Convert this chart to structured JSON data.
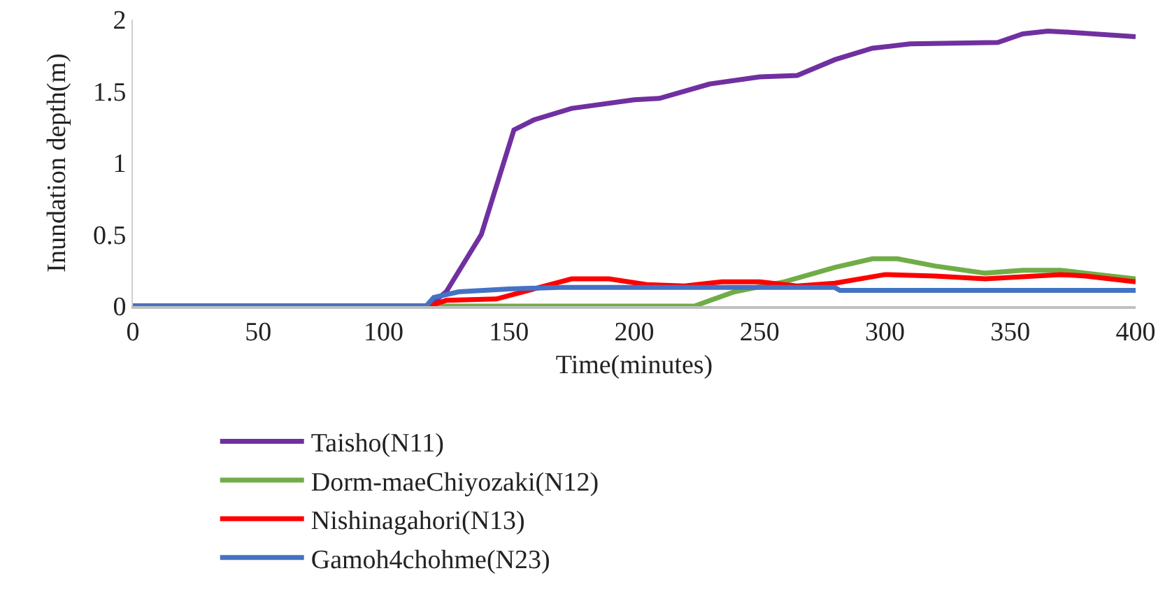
{
  "chart_data": {
    "type": "line",
    "xlabel": "Time(minutes)",
    "ylabel": "Inundation depth(m)",
    "xlim": [
      0,
      400
    ],
    "xticks": [
      0,
      50,
      100,
      150,
      200,
      250,
      300,
      350,
      400
    ],
    "ylim": [
      0,
      2
    ],
    "yticks": [
      0,
      0.5,
      1,
      1.5,
      2
    ],
    "grid": false,
    "legend": "bottom",
    "marker": "none",
    "line_style": "solid",
    "series": [
      {
        "name": "Taisho(N11)",
        "color": "#7030a0",
        "x": [
          0,
          118,
          125,
          139,
          152,
          160,
          175,
          200,
          210,
          230,
          250,
          265,
          280,
          295,
          310,
          345,
          355,
          365,
          375,
          400
        ],
        "values": [
          0,
          0,
          0.1,
          0.5,
          1.23,
          1.3,
          1.38,
          1.44,
          1.45,
          1.55,
          1.6,
          1.61,
          1.72,
          1.8,
          1.83,
          1.84,
          1.9,
          1.92,
          1.91,
          1.88
        ]
      },
      {
        "name": "Dorm-maeChiyozaki(N12)",
        "color": "#70ad47",
        "x": [
          0,
          224,
          240,
          260,
          280,
          295,
          305,
          320,
          340,
          355,
          370,
          385,
          400
        ],
        "values": [
          0,
          0,
          0.1,
          0.17,
          0.27,
          0.33,
          0.33,
          0.28,
          0.23,
          0.25,
          0.25,
          0.22,
          0.19
        ]
      },
      {
        "name": "Nishinagahori(N13)",
        "color": "#ff0000",
        "x": [
          0,
          118,
          125,
          145,
          160,
          175,
          190,
          205,
          220,
          235,
          250,
          265,
          280,
          300,
          320,
          340,
          360,
          370,
          380,
          400
        ],
        "values": [
          0,
          0,
          0.04,
          0.05,
          0.12,
          0.19,
          0.19,
          0.15,
          0.14,
          0.17,
          0.17,
          0.14,
          0.16,
          0.22,
          0.21,
          0.19,
          0.21,
          0.22,
          0.21,
          0.17
        ]
      },
      {
        "name": "Gamoh4chohme(N23)",
        "color": "#4472c4",
        "x": [
          0,
          117,
          120,
          130,
          150,
          170,
          200,
          230,
          280,
          282,
          400
        ],
        "values": [
          0,
          0,
          0.06,
          0.1,
          0.12,
          0.13,
          0.13,
          0.13,
          0.13,
          0.11,
          0.11
        ]
      }
    ]
  }
}
